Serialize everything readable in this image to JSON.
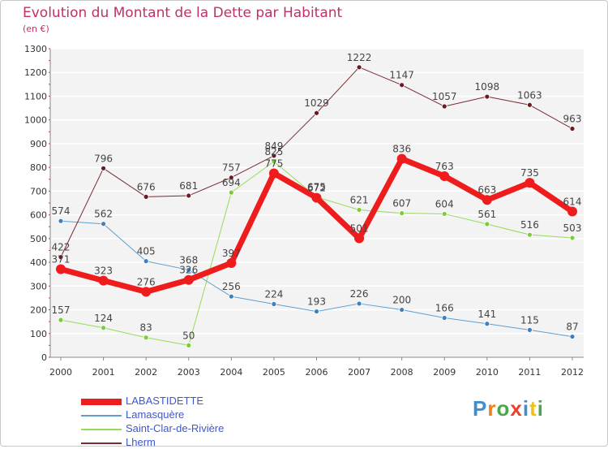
{
  "title": "Evolution du Montant de la Dette par Habitant",
  "unit_label": "(en €)",
  "brand": "Proxiti",
  "chart_data": {
    "type": "line",
    "x": [
      "2000",
      "2001",
      "2002",
      "2003",
      "2004",
      "2005",
      "2006",
      "2007",
      "2008",
      "2009",
      "2010",
      "2011",
      "2012"
    ],
    "ylim": [
      0,
      1300
    ],
    "yticks": [
      0,
      100,
      200,
      300,
      400,
      500,
      600,
      700,
      800,
      900,
      1000,
      1100,
      1200,
      1300
    ],
    "grid": true,
    "legend_position": "bottom-left",
    "series": [
      {
        "name": "LABASTIDETTE",
        "color": "#ee1c1c",
        "marker": "#ee1c1c",
        "width": 7,
        "values": [
          371,
          323,
          276,
          326,
          397,
          775,
          672,
          501,
          836,
          763,
          663,
          735,
          614
        ]
      },
      {
        "name": "Lamasquère",
        "color": "#5f9fcf",
        "marker": "#3f7fbf",
        "width": 1,
        "values": [
          574,
          562,
          405,
          368,
          256,
          224,
          193,
          226,
          200,
          166,
          141,
          115,
          87
        ]
      },
      {
        "name": "Saint-Clar-de-Rivière",
        "color": "#94dc5a",
        "marker": "#7ccc38",
        "width": 1,
        "values": [
          157,
          124,
          83,
          50,
          694,
          825,
          675,
          621,
          607,
          604,
          561,
          516,
          503
        ]
      },
      {
        "name": "Lherm",
        "color": "#7a2a32",
        "marker": "#6a1a22",
        "width": 1,
        "values": [
          422,
          796,
          676,
          681,
          757,
          849,
          1029,
          1222,
          1147,
          1057,
          1098,
          1063,
          963
        ]
      }
    ]
  }
}
